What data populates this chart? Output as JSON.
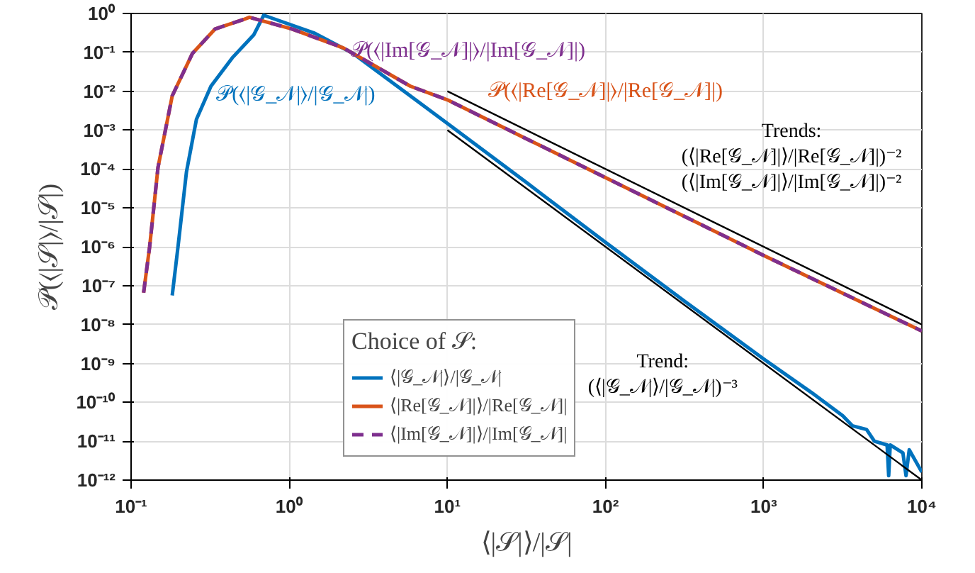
{
  "chart_data": {
    "type": "line",
    "xlabel": "⟨|𝒮|⟩/|𝒮|",
    "ylabel": "𝒫(⟨|𝒮|⟩/|𝒮|)",
    "legend_title": "Choice of 𝒮:",
    "log": "xy",
    "xlim": [
      0.1,
      10000
    ],
    "ylim": [
      1e-12,
      1
    ],
    "xticks": [
      {
        "value": 0.1,
        "label": "10⁻¹"
      },
      {
        "value": 1,
        "label": "10⁰"
      },
      {
        "value": 10,
        "label": "10¹"
      },
      {
        "value": 100,
        "label": "10²"
      },
      {
        "value": 1000,
        "label": "10³"
      },
      {
        "value": 10000,
        "label": "10⁴"
      }
    ],
    "yticks": [
      {
        "value": 1e-12,
        "label": "10⁻¹²"
      },
      {
        "value": 1e-11,
        "label": "10⁻¹¹"
      },
      {
        "value": 1e-10,
        "label": "10⁻¹⁰"
      },
      {
        "value": 1e-09,
        "label": "10⁻⁹"
      },
      {
        "value": 1e-08,
        "label": "10⁻⁸"
      },
      {
        "value": 1e-07,
        "label": "10⁻⁷"
      },
      {
        "value": 1e-06,
        "label": "10⁻⁶"
      },
      {
        "value": 1e-05,
        "label": "10⁻⁵"
      },
      {
        "value": 0.0001,
        "label": "10⁻⁴"
      },
      {
        "value": 0.001,
        "label": "10⁻³"
      },
      {
        "value": 0.01,
        "label": "10⁻²"
      },
      {
        "value": 0.1,
        "label": "10⁻¹"
      },
      {
        "value": 1,
        "label": "10⁰"
      }
    ],
    "grid": true,
    "legend": "bottom left",
    "series": [
      {
        "name": "⟨|𝒢_𝒩|⟩/|𝒢_𝒩|",
        "color": "#0072bd",
        "line_style": "solid",
        "x": [
          0.182,
          0.198,
          0.224,
          0.259,
          0.32,
          0.436,
          0.596,
          0.69,
          1.45,
          2.54,
          5.83,
          10.2,
          31.6,
          100,
          316,
          1000,
          2000,
          3160,
          3630,
          4470,
          5010,
          6030,
          6170,
          6310,
          7590,
          7940,
          8320,
          10000
        ],
        "values": [
          5.6e-08,
          1e-06,
          8.5e-05,
          0.0019,
          0.0135,
          0.072,
          0.28,
          0.9,
          0.31,
          0.093,
          0.0076,
          0.0014,
          4.5e-05,
          1.3e-06,
          4e-08,
          1.3e-09,
          1.8e-10,
          4.5e-11,
          2.5e-11,
          2e-11,
          1e-11,
          8e-12,
          1.3e-12,
          8e-12,
          5e-12,
          1.3e-12,
          6e-12,
          1.6e-12
        ]
      },
      {
        "name": "⟨|Re[𝒢_𝒩]|⟩/|Re[𝒢_𝒩]|",
        "color": "#d95319",
        "line_style": "solid",
        "x": [
          0.12,
          0.131,
          0.148,
          0.182,
          0.244,
          0.34,
          0.515,
          0.56,
          1.04,
          2.2,
          5.83,
          10,
          31.6,
          100,
          1000,
          10000
        ],
        "values": [
          6.6e-08,
          1e-06,
          0.00011,
          0.0076,
          0.093,
          0.4,
          0.7,
          0.8,
          0.4,
          0.13,
          0.0135,
          0.006,
          0.0006,
          6e-05,
          6e-07,
          6.8e-09
        ]
      },
      {
        "name": "⟨|Im[𝒢_𝒩]|⟩/|Im[𝒢_𝒩]|",
        "color": "#7e2f8e",
        "line_style": "dashed",
        "x": [
          0.12,
          0.131,
          0.148,
          0.182,
          0.244,
          0.34,
          0.515,
          0.56,
          1.04,
          2.2,
          5.83,
          10,
          31.6,
          100,
          1000,
          10000
        ],
        "values": [
          6.6e-08,
          1e-06,
          0.00011,
          0.0076,
          0.093,
          0.4,
          0.7,
          0.8,
          0.4,
          0.13,
          0.0135,
          0.006,
          0.0006,
          6e-05,
          6e-07,
          6.8e-09
        ]
      },
      {
        "type": "line",
        "color": "#000000",
        "x": [
          10,
          10000
        ],
        "values": [
          0.01,
          1e-08
        ]
      },
      {
        "type": "line",
        "color": "#000000",
        "x": [
          10,
          10000
        ],
        "values": [
          0.001,
          1e-12
        ]
      }
    ],
    "annotations": [
      "𝒫(⟨|𝒢_𝒩|⟩/|𝒢_𝒩|)",
      "𝒫(⟨|Re[𝒢_𝒩]|⟩/|Re[𝒢_𝒩]|)",
      "𝒫(⟨|Im[𝒢_𝒩]|⟩/|Im[𝒢_𝒩]|)",
      "Trends:\n(⟨|Re[𝒢_𝒩]|⟩/|Re[𝒢_𝒩]|)⁻²\n(⟨|Im[𝒢_𝒩]|⟩/|Im[𝒢_𝒩]|)⁻²",
      "Trend:\n(⟨|𝒢_𝒩|⟩/|𝒢_𝒩|)⁻³"
    ]
  }
}
